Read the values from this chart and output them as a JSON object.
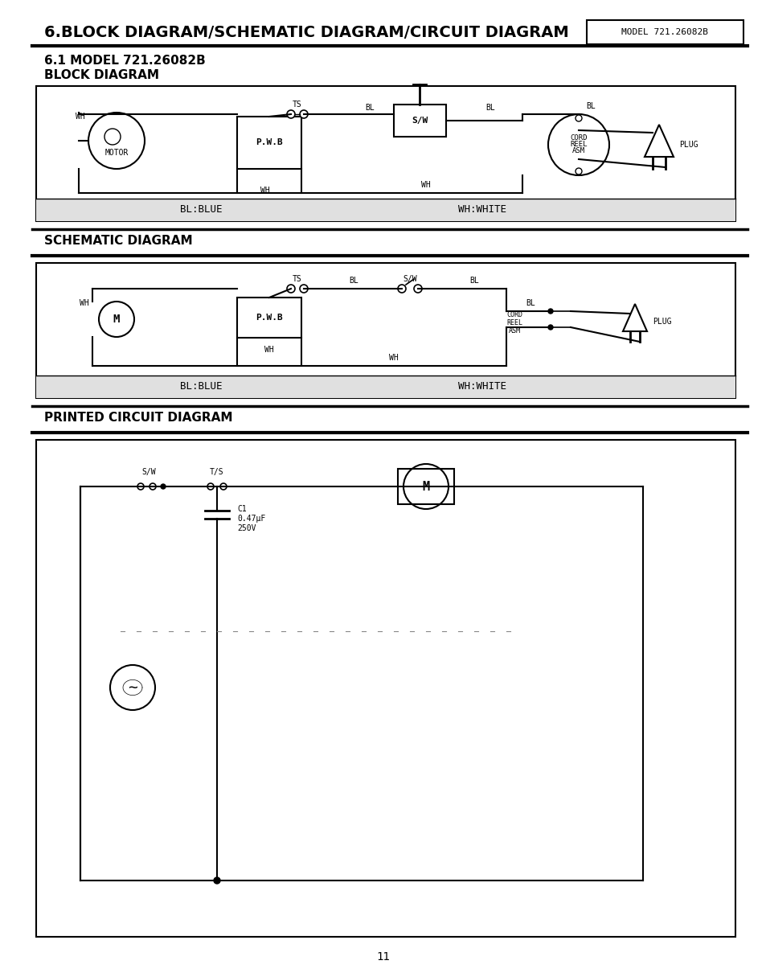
{
  "title": "6.BLOCK DIAGRAM/SCHEMATIC DIAGRAM/CIRCUIT DIAGRAM",
  "model_label": "MODEL 721.26082B",
  "subtitle1": "6.1 MODEL 721.26082B",
  "subtitle2": "BLOCK DIAGRAM",
  "section2": "SCHEMATIC DIAGRAM",
  "section3": "PRINTED CIRCUIT DIAGRAM",
  "bg_color": "#ffffff",
  "line_color": "#000000",
  "page_num": "11"
}
